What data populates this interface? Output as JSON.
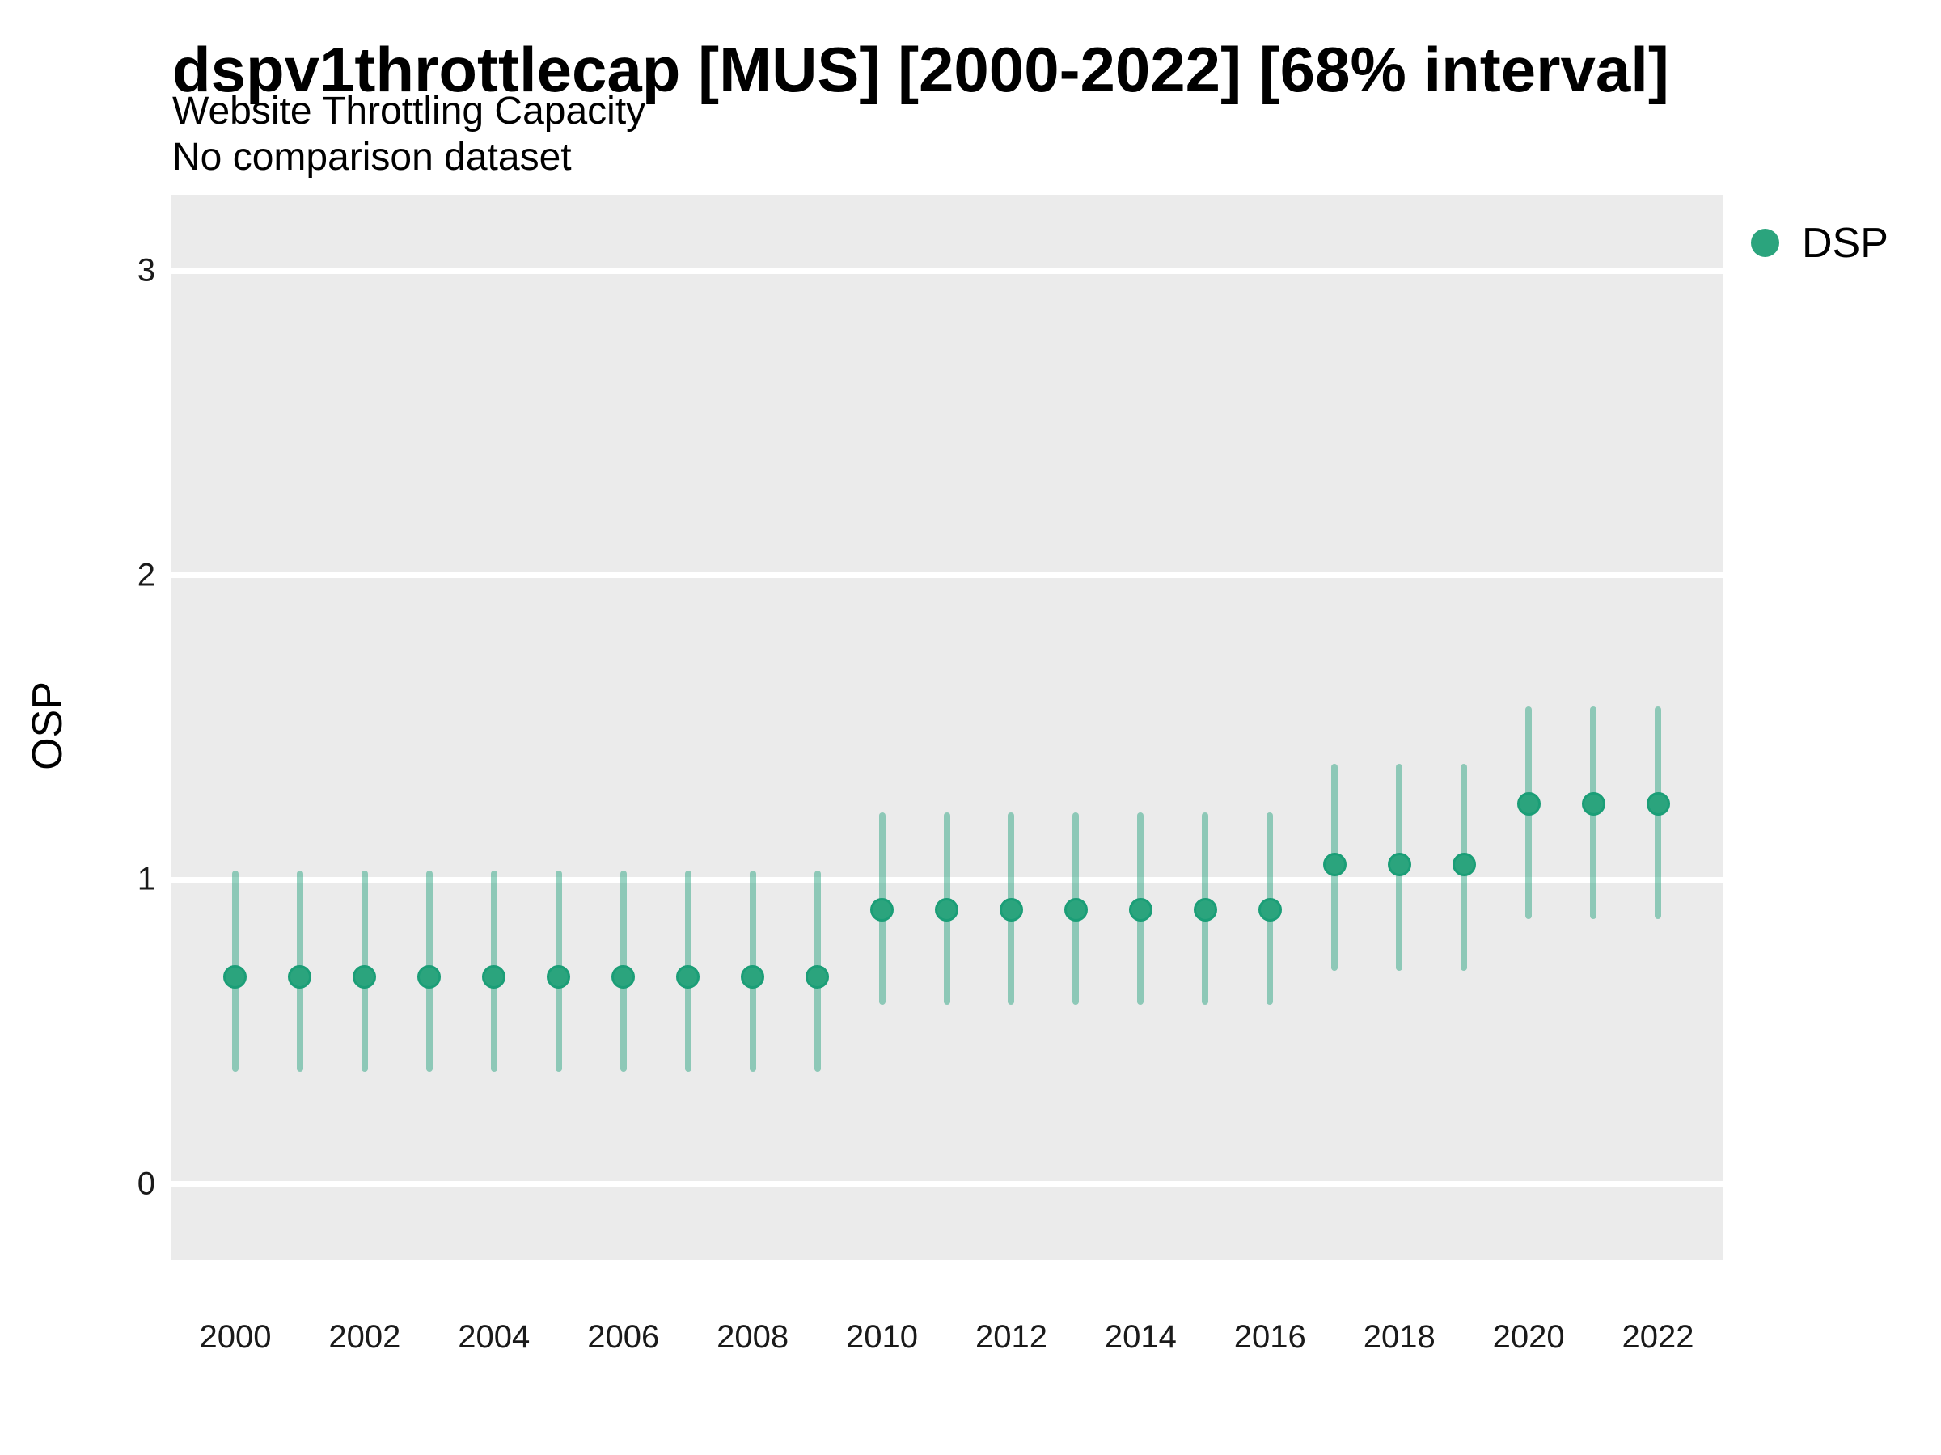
{
  "header": {
    "title": "dspv1throttlecap [MUS] [2000-2022] [68% interval]",
    "subtitle": "Website Throttling Capacity",
    "note": "No comparison dataset"
  },
  "legend": {
    "label": "DSP"
  },
  "chart_data": {
    "type": "scatter",
    "title": "dspv1throttlecap [MUS] [2000-2022] [68% interval]",
    "subtitle": "Website Throttling Capacity",
    "note": "No comparison dataset",
    "xlabel": "",
    "ylabel": "OSP",
    "interval_label": "68% interval",
    "xlim": [
      1999,
      2023
    ],
    "ylim": [
      -0.25,
      3.25
    ],
    "yticks": [
      0,
      1,
      2,
      3
    ],
    "xticks": [
      2000,
      2002,
      2004,
      2006,
      2008,
      2010,
      2012,
      2014,
      2016,
      2018,
      2020,
      2022
    ],
    "grid": "horizontal-major-only",
    "legend_position": "right-top",
    "colors": {
      "point_fill": "#2BA47D",
      "point_ring": "#1B9E77",
      "interval_bar": "rgba(27,158,119,0.45)",
      "panel_bg": "#EBEBEB",
      "gridline": "#FFFFFF",
      "legend_swatch": "#2BA47D"
    },
    "series": [
      {
        "name": "DSP",
        "points": [
          {
            "year": 2000,
            "value": 0.68,
            "lo": 0.37,
            "hi": 1.03
          },
          {
            "year": 2001,
            "value": 0.68,
            "lo": 0.37,
            "hi": 1.03
          },
          {
            "year": 2002,
            "value": 0.68,
            "lo": 0.37,
            "hi": 1.03
          },
          {
            "year": 2003,
            "value": 0.68,
            "lo": 0.37,
            "hi": 1.03
          },
          {
            "year": 2004,
            "value": 0.68,
            "lo": 0.37,
            "hi": 1.03
          },
          {
            "year": 2005,
            "value": 0.68,
            "lo": 0.37,
            "hi": 1.03
          },
          {
            "year": 2006,
            "value": 0.68,
            "lo": 0.37,
            "hi": 1.03
          },
          {
            "year": 2007,
            "value": 0.68,
            "lo": 0.37,
            "hi": 1.03
          },
          {
            "year": 2008,
            "value": 0.68,
            "lo": 0.37,
            "hi": 1.03
          },
          {
            "year": 2009,
            "value": 0.68,
            "lo": 0.37,
            "hi": 1.03
          },
          {
            "year": 2010,
            "value": 0.9,
            "lo": 0.59,
            "hi": 1.22
          },
          {
            "year": 2011,
            "value": 0.9,
            "lo": 0.59,
            "hi": 1.22
          },
          {
            "year": 2012,
            "value": 0.9,
            "lo": 0.59,
            "hi": 1.22
          },
          {
            "year": 2013,
            "value": 0.9,
            "lo": 0.59,
            "hi": 1.22
          },
          {
            "year": 2014,
            "value": 0.9,
            "lo": 0.59,
            "hi": 1.22
          },
          {
            "year": 2015,
            "value": 0.9,
            "lo": 0.59,
            "hi": 1.22
          },
          {
            "year": 2016,
            "value": 0.9,
            "lo": 0.59,
            "hi": 1.22
          },
          {
            "year": 2017,
            "value": 1.05,
            "lo": 0.7,
            "hi": 1.38
          },
          {
            "year": 2018,
            "value": 1.05,
            "lo": 0.7,
            "hi": 1.38
          },
          {
            "year": 2019,
            "value": 1.05,
            "lo": 0.7,
            "hi": 1.38
          },
          {
            "year": 2020,
            "value": 1.25,
            "lo": 0.87,
            "hi": 1.57
          },
          {
            "year": 2021,
            "value": 1.25,
            "lo": 0.87,
            "hi": 1.57
          },
          {
            "year": 2022,
            "value": 1.25,
            "lo": 0.87,
            "hi": 1.57
          }
        ]
      }
    ]
  }
}
